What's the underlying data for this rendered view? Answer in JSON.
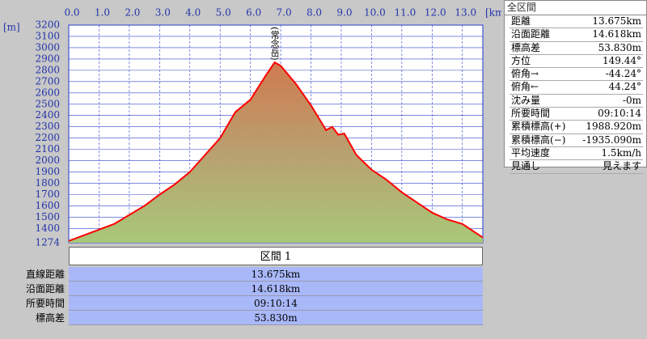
{
  "chart_data": {
    "type": "area",
    "xlabel": "[km]",
    "ylabel": "[m]",
    "annotation": "(常念岳)",
    "x": [
      0,
      0.5,
      1.0,
      1.5,
      2.0,
      2.5,
      3.0,
      3.5,
      4.0,
      4.5,
      5.0,
      5.5,
      6.0,
      6.5,
      6.8,
      7.0,
      7.5,
      8.0,
      8.5,
      8.7,
      8.9,
      9.1,
      9.5,
      10.0,
      10.5,
      11.0,
      11.5,
      12.0,
      12.5,
      13.0,
      13.675
    ],
    "values": [
      1290,
      1340,
      1390,
      1440,
      1520,
      1600,
      1700,
      1790,
      1900,
      2050,
      2200,
      2430,
      2540,
      2750,
      2870,
      2840,
      2680,
      2490,
      2270,
      2300,
      2230,
      2240,
      2050,
      1920,
      1830,
      1720,
      1630,
      1540,
      1480,
      1440,
      1320
    ],
    "color": "#ff0000",
    "xlim": [
      0,
      13.675
    ],
    "ylim": [
      1274,
      3200
    ],
    "xticks": [
      {
        "value": 0,
        "label": "0.0"
      },
      {
        "value": 1,
        "label": "1.0"
      },
      {
        "value": 2,
        "label": "2.0"
      },
      {
        "value": 3,
        "label": "3.0"
      },
      {
        "value": 4,
        "label": "4.0"
      },
      {
        "value": 5,
        "label": "5.0"
      },
      {
        "value": 6,
        "label": "6.0"
      },
      {
        "value": 7,
        "label": "7.0"
      },
      {
        "value": 8,
        "label": "8.0"
      },
      {
        "value": 9,
        "label": "9.0"
      },
      {
        "value": 10,
        "label": "10.0"
      },
      {
        "value": 11,
        "label": "11.0"
      },
      {
        "value": 12,
        "label": "12.0"
      },
      {
        "value": 13,
        "label": "13.0"
      }
    ],
    "yticks": [
      1274,
      1400,
      1500,
      1600,
      1700,
      1800,
      1900,
      2000,
      2100,
      2200,
      2300,
      2400,
      2500,
      2600,
      2700,
      2800,
      2900,
      3000,
      3100,
      3200
    ],
    "grid": true
  },
  "summary": {
    "title": "全区間",
    "rows": [
      [
        "距離",
        "13.675km"
      ],
      [
        "沿面距離",
        "14.618km"
      ],
      [
        "標高差",
        "53.830m"
      ],
      [
        "方位",
        "149.44°"
      ],
      [
        "俯角→",
        "-44.24°"
      ],
      [
        "俯角←",
        "44.24°"
      ],
      [
        "沈み量",
        "-0m"
      ],
      [
        "所要時間",
        "09:10:14"
      ],
      [
        "累積標高(+)",
        "1988.920m"
      ],
      [
        "累積標高(−)",
        "-1935.090m"
      ],
      [
        "平均速度",
        "1.5km/h"
      ],
      [
        "見通し",
        "見えます"
      ]
    ]
  },
  "section": {
    "title": "区間 1",
    "rows": [
      [
        "直線距離",
        "13.675km"
      ],
      [
        "沿面距離",
        "14.618km"
      ],
      [
        "所要時間",
        "09:10:14"
      ],
      [
        "標高差",
        "53.830m"
      ]
    ]
  }
}
